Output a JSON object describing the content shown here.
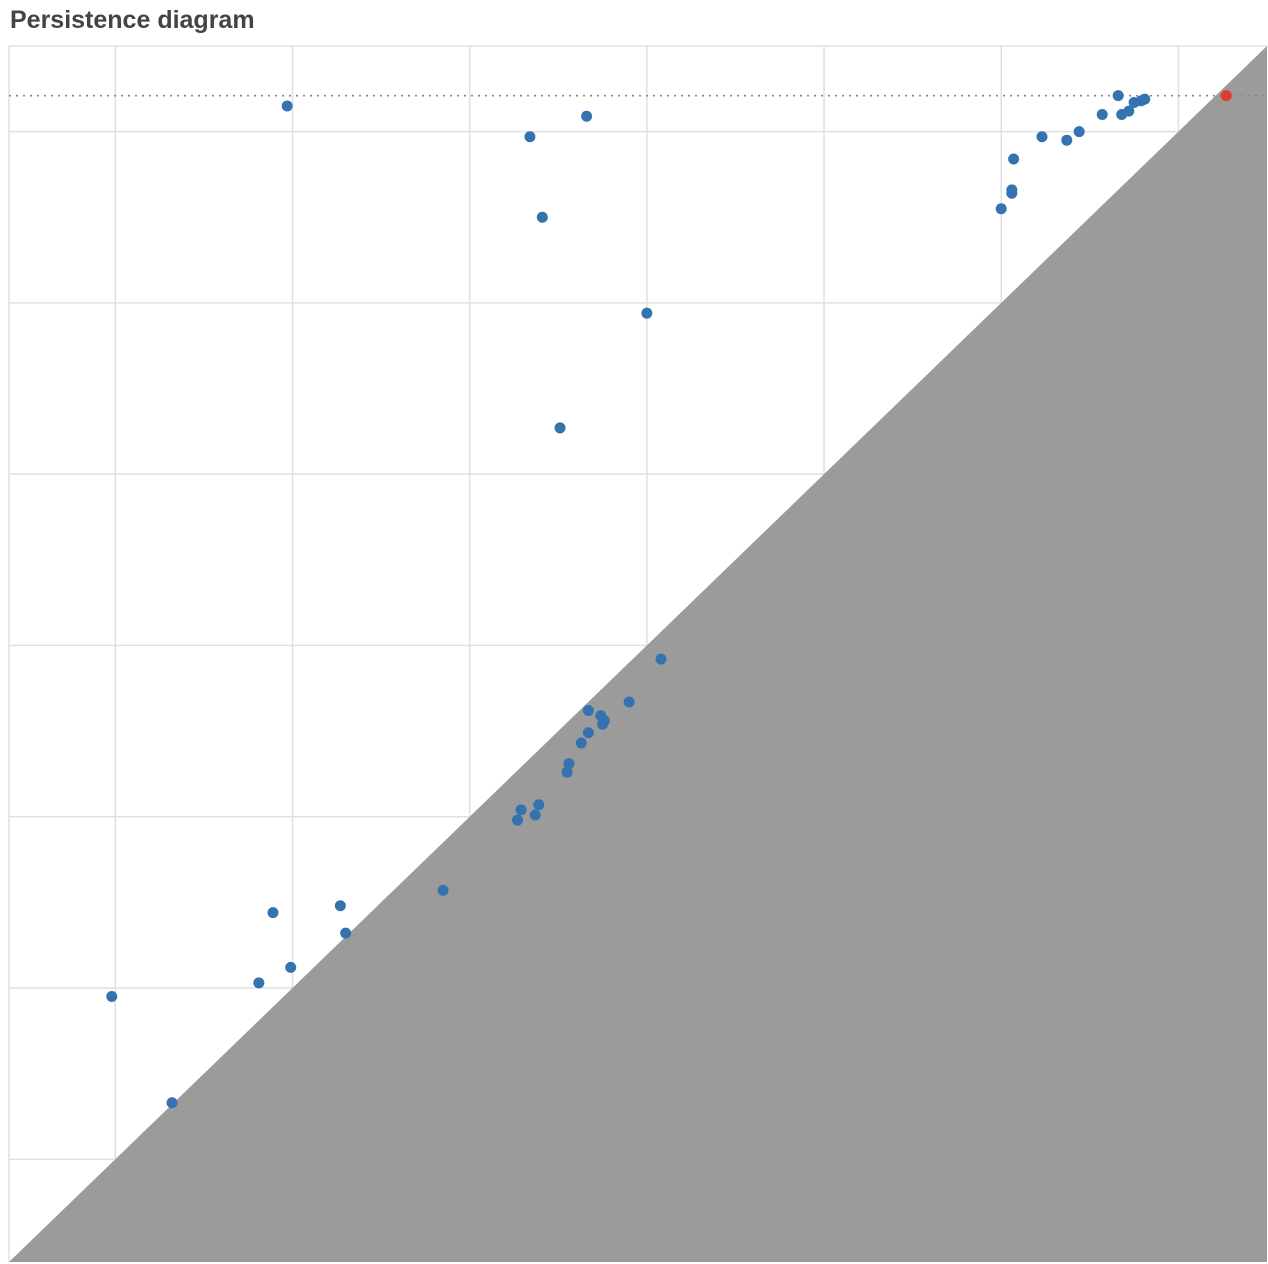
{
  "title": "Persistence diagram",
  "chart_data": {
    "type": "scatter",
    "title": "Persistence diagram",
    "xlabel": "",
    "ylabel": "",
    "xlim": [
      -0.6,
      6.5
    ],
    "ylim": [
      -0.6,
      6.5
    ],
    "x_ticks": [
      0,
      1,
      2,
      3,
      4,
      5,
      6
    ],
    "y_ticks": [
      0,
      1,
      2,
      3,
      4,
      5,
      6
    ],
    "grid": true,
    "diagonal_fill": "below y = x",
    "infinity_line_y": 6.21,
    "colors": {
      "points": "#3572b0",
      "infinite": "#e23a2b",
      "diagonal": "#999999",
      "grid": "#e0e0e0"
    },
    "series": [
      {
        "points": [
          [
            -0.02,
            0.95
          ],
          [
            0.32,
            0.33
          ],
          [
            0.81,
            1.03
          ],
          [
            0.99,
            1.12
          ],
          [
            0.89,
            1.44
          ],
          [
            1.27,
            1.48
          ],
          [
            1.3,
            1.32
          ],
          [
            1.85,
            1.57
          ],
          [
            2.27,
            1.98
          ],
          [
            2.29,
            2.04
          ],
          [
            2.37,
            2.01
          ],
          [
            2.39,
            2.07
          ],
          [
            2.55,
            2.26
          ],
          [
            2.56,
            2.31
          ],
          [
            2.63,
            2.43
          ],
          [
            2.67,
            2.49
          ],
          [
            2.67,
            2.62
          ],
          [
            2.74,
            2.59
          ],
          [
            2.76,
            2.56
          ],
          [
            2.75,
            2.54
          ],
          [
            2.9,
            2.67
          ],
          [
            3.08,
            2.92
          ],
          [
            2.51,
            4.27
          ],
          [
            3.0,
            4.94
          ],
          [
            2.41,
            5.5
          ],
          [
            2.34,
            5.97
          ],
          [
            2.66,
            6.09
          ],
          [
            0.97,
            6.15
          ],
          [
            5.0,
            5.55
          ],
          [
            5.06,
            5.66
          ],
          [
            5.06,
            5.64
          ],
          [
            5.07,
            5.84
          ],
          [
            5.23,
            5.97
          ],
          [
            5.37,
            5.95
          ],
          [
            5.44,
            6.0
          ],
          [
            5.57,
            6.1
          ],
          [
            5.66,
            6.21
          ],
          [
            5.68,
            6.1
          ],
          [
            5.72,
            6.12
          ],
          [
            5.75,
            6.17
          ],
          [
            5.79,
            6.18
          ],
          [
            5.81,
            6.19
          ]
        ]
      },
      {
        "points": [
          [
            6.27,
            6.21
          ]
        ]
      }
    ]
  }
}
